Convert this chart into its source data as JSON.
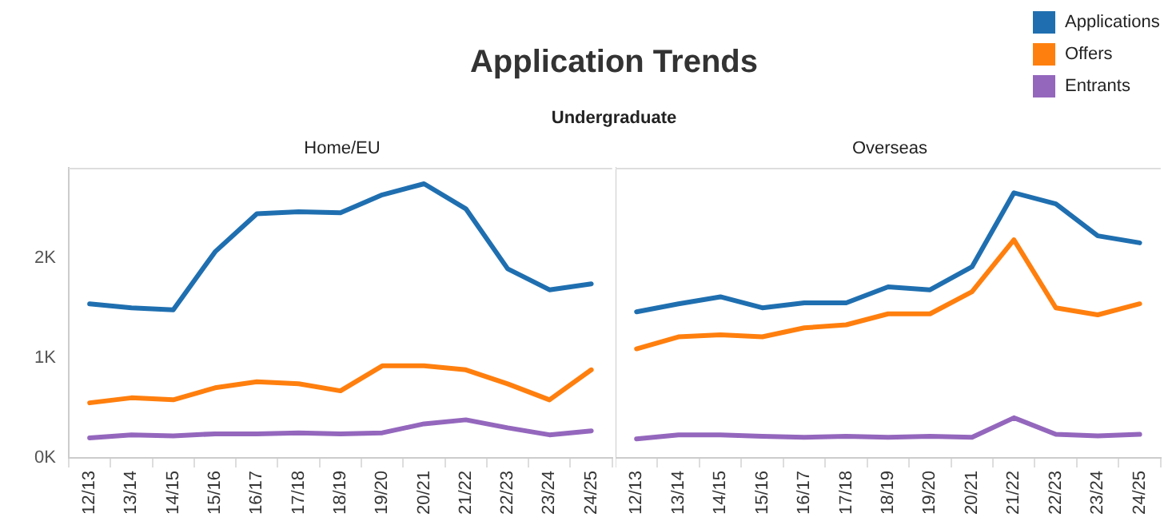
{
  "chart_data": [
    {
      "type": "line",
      "title": "Application Trends",
      "subtitle": "Undergraduate",
      "annotations": [
        "Home/EU"
      ],
      "legend": "top right",
      "categories": [
        "12/13",
        "13/14",
        "14/15",
        "15/16",
        "16/17",
        "17/18",
        "18/19",
        "19/20",
        "20/21",
        "21/22",
        "22/23",
        "23/24",
        "24/25"
      ],
      "ylim": [
        0,
        2900
      ],
      "yticks": [
        {
          "value": 0,
          "label": "0K"
        },
        {
          "value": 1000,
          "label": "1K"
        },
        {
          "value": 2000,
          "label": "2K"
        }
      ],
      "grid": false,
      "series": [
        {
          "name": "Applications",
          "color": "#1f6fb0",
          "values": [
            1540,
            1500,
            1480,
            2060,
            2440,
            2460,
            2450,
            2630,
            2740,
            2490,
            1890,
            1680,
            1740
          ]
        },
        {
          "name": "Offers",
          "color": "#ff7f0e",
          "values": [
            550,
            600,
            580,
            700,
            760,
            740,
            670,
            920,
            920,
            880,
            740,
            580,
            880
          ]
        },
        {
          "name": "Entrants",
          "color": "#9467bd",
          "values": [
            200,
            230,
            220,
            240,
            240,
            250,
            240,
            250,
            340,
            380,
            300,
            230,
            270
          ]
        }
      ]
    },
    {
      "type": "line",
      "annotations": [
        "Overseas"
      ],
      "tick_labels": "x",
      "categories": [
        "12/13",
        "13/14",
        "14/15",
        "15/16",
        "16/17",
        "17/18",
        "18/19",
        "19/20",
        "20/21",
        "21/22",
        "22/23",
        "23/24",
        "24/25"
      ],
      "ylim": [
        0,
        2900
      ],
      "grid": false,
      "series": [
        {
          "color": "#1f6fb0",
          "values": [
            1460,
            1540,
            1610,
            1500,
            1550,
            1550,
            1710,
            1680,
            1910,
            2650,
            2540,
            2220,
            2150
          ]
        },
        {
          "color": "#ff7f0e",
          "values": [
            1090,
            1210,
            1230,
            1210,
            1300,
            1330,
            1440,
            1440,
            1660,
            2180,
            1500,
            1430,
            1540
          ]
        },
        {
          "color": "#9467bd",
          "values": [
            190,
            230,
            230,
            215,
            205,
            215,
            205,
            215,
            205,
            400,
            235,
            220,
            235
          ]
        }
      ]
    }
  ]
}
